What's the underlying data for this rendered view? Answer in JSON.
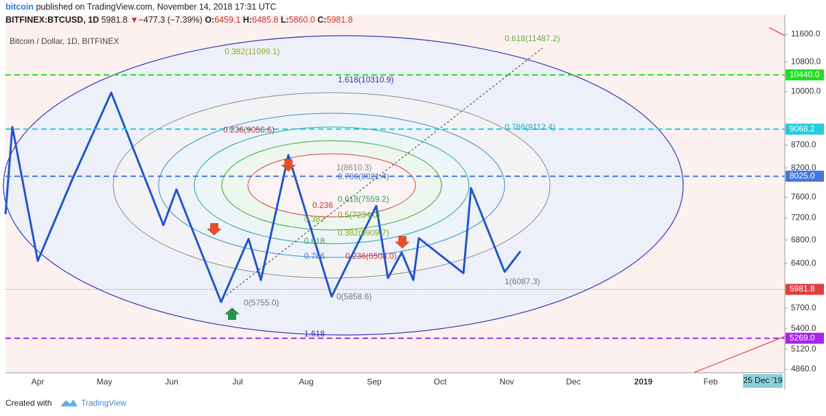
{
  "header": {
    "author": "bitcoin",
    "published": "published on TradingView.com, November 14, 2018 17:31 UTC",
    "symbol": "BITFINEX:BTCUSD, 1D",
    "last": "5981.8",
    "arrow": "▼",
    "change": "−477.3 (−7.39%)",
    "o_label": "O:",
    "o": "6459.1",
    "h_label": "H:",
    "h": "6485.8",
    "l_label": "L:",
    "l": "5860.0",
    "c_label": "C:",
    "c": "5981.8"
  },
  "legend": "Bitcoin / Dollar, 1D, BITFINEX",
  "price_axis": {
    "scale": "log",
    "ylim": [
      4817,
      11809
    ],
    "ticks": [
      {
        "value": 11600,
        "label": "11600.0"
      },
      {
        "value": 10800,
        "label": "10800.0"
      },
      {
        "value": 10000,
        "label": "10000.0"
      },
      {
        "value": 8700,
        "label": "8700.0"
      },
      {
        "value": 8200,
        "label": "8200.0"
      },
      {
        "value": 7600,
        "label": "7600.0"
      },
      {
        "value": 7200,
        "label": "7200.0"
      },
      {
        "value": 6800,
        "label": "6800.0"
      },
      {
        "value": 6400,
        "label": "6400.0"
      },
      {
        "value": 5700,
        "label": "5700.0"
      },
      {
        "value": 5400,
        "label": "5400.0"
      },
      {
        "value": 5120,
        "label": "5120.0"
      },
      {
        "value": 4860,
        "label": "4860.0"
      }
    ]
  },
  "levels": [
    {
      "value": 10440,
      "label": "10440.0",
      "color": "#22dd22"
    },
    {
      "value": 9068.2,
      "label": "9068.2",
      "color": "#22ccdd"
    },
    {
      "value": 8025,
      "label": "8025.0",
      "color": "#4477dd"
    },
    {
      "value": 5981.8,
      "label": "5981.8",
      "color": "#e04040"
    },
    {
      "value": 5269,
      "label": "5269.0",
      "color": "#aa22ee"
    }
  ],
  "time_axis": [
    "Apr",
    "May",
    "Jun",
    "Jul",
    "Aug",
    "Sep",
    "Oct",
    "Nov",
    "Dec",
    "2019",
    "Feb"
  ],
  "cursor_date": "25 Dec '19",
  "annotations": [
    "0.618(11487.2)",
    "0.382(11099.1)",
    "1.618(10310.9)",
    "0.786(9112.4)",
    "0.236(9056.6)",
    "1(8610.3)",
    "0.786(8021.4)",
    "0.618(7559.2)",
    "0.5(7234.0)",
    "0.382(6909.7)",
    "0.236",
    "0.382",
    "0.618",
    "0.786",
    "0.236(6508.0)",
    "1(6087.3)",
    "0(5858.6)",
    "0(5755.0)",
    "1.618"
  ],
  "footer": {
    "created": "Created with",
    "brand": "TradingView"
  }
}
